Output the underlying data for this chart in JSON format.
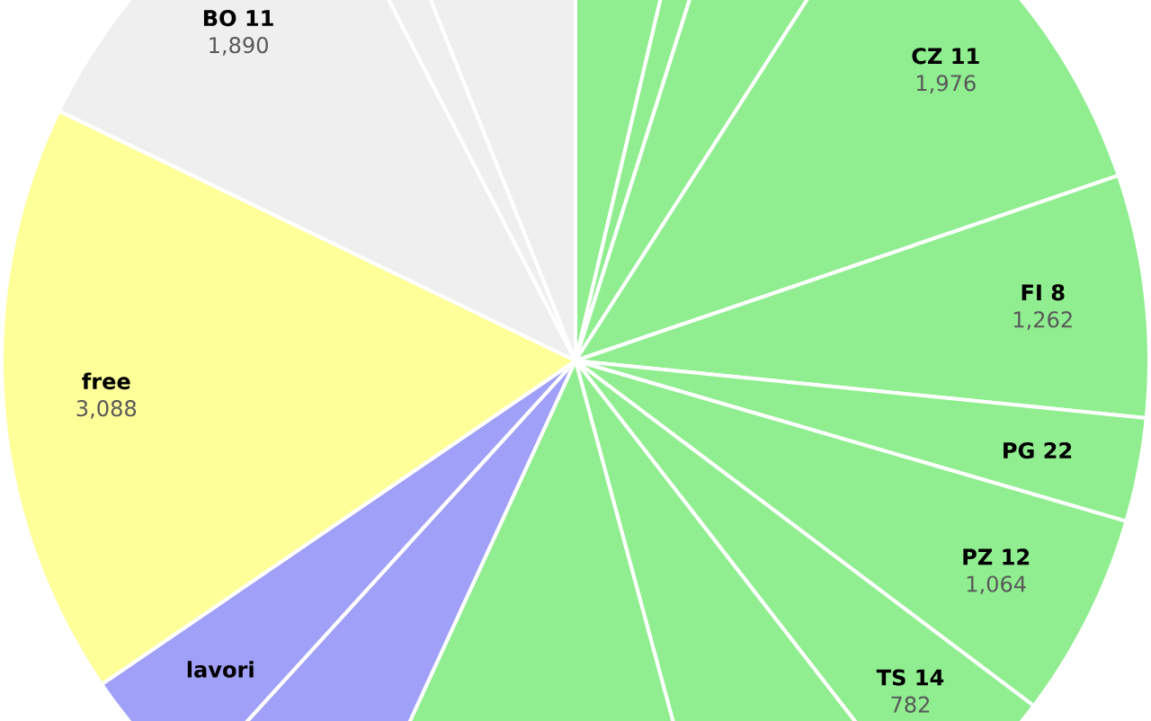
{
  "chart_data": {
    "type": "pie",
    "categories": [
      null,
      null,
      null,
      "CZ 11",
      "FI 8",
      "PG 22",
      "PZ 12",
      "TS 14",
      null,
      null,
      null,
      "lavori",
      "free",
      "BO 11",
      null,
      null
    ],
    "values": [
      679,
      221,
      777,
      1976,
      1262,
      540,
      1064,
      782,
      1163,
      2043,
      906,
      685,
      3088,
      1890,
      283,
      1122
    ],
    "value_labels": [
      null,
      null,
      null,
      "1,976",
      "1,262",
      null,
      "1,064",
      "782",
      null,
      null,
      null,
      null,
      "3,088",
      "1,890",
      null,
      null
    ],
    "colors": [
      "#90ee90",
      "#90ee90",
      "#90ee90",
      "#90ee90",
      "#90ee90",
      "#90ee90",
      "#90ee90",
      "#90ee90",
      "#90ee90",
      "#90ee90",
      "#a0a0f8",
      "#a0a0f8",
      "#ffff99",
      "#efefef",
      "#efefef",
      "#efefef"
    ]
  }
}
